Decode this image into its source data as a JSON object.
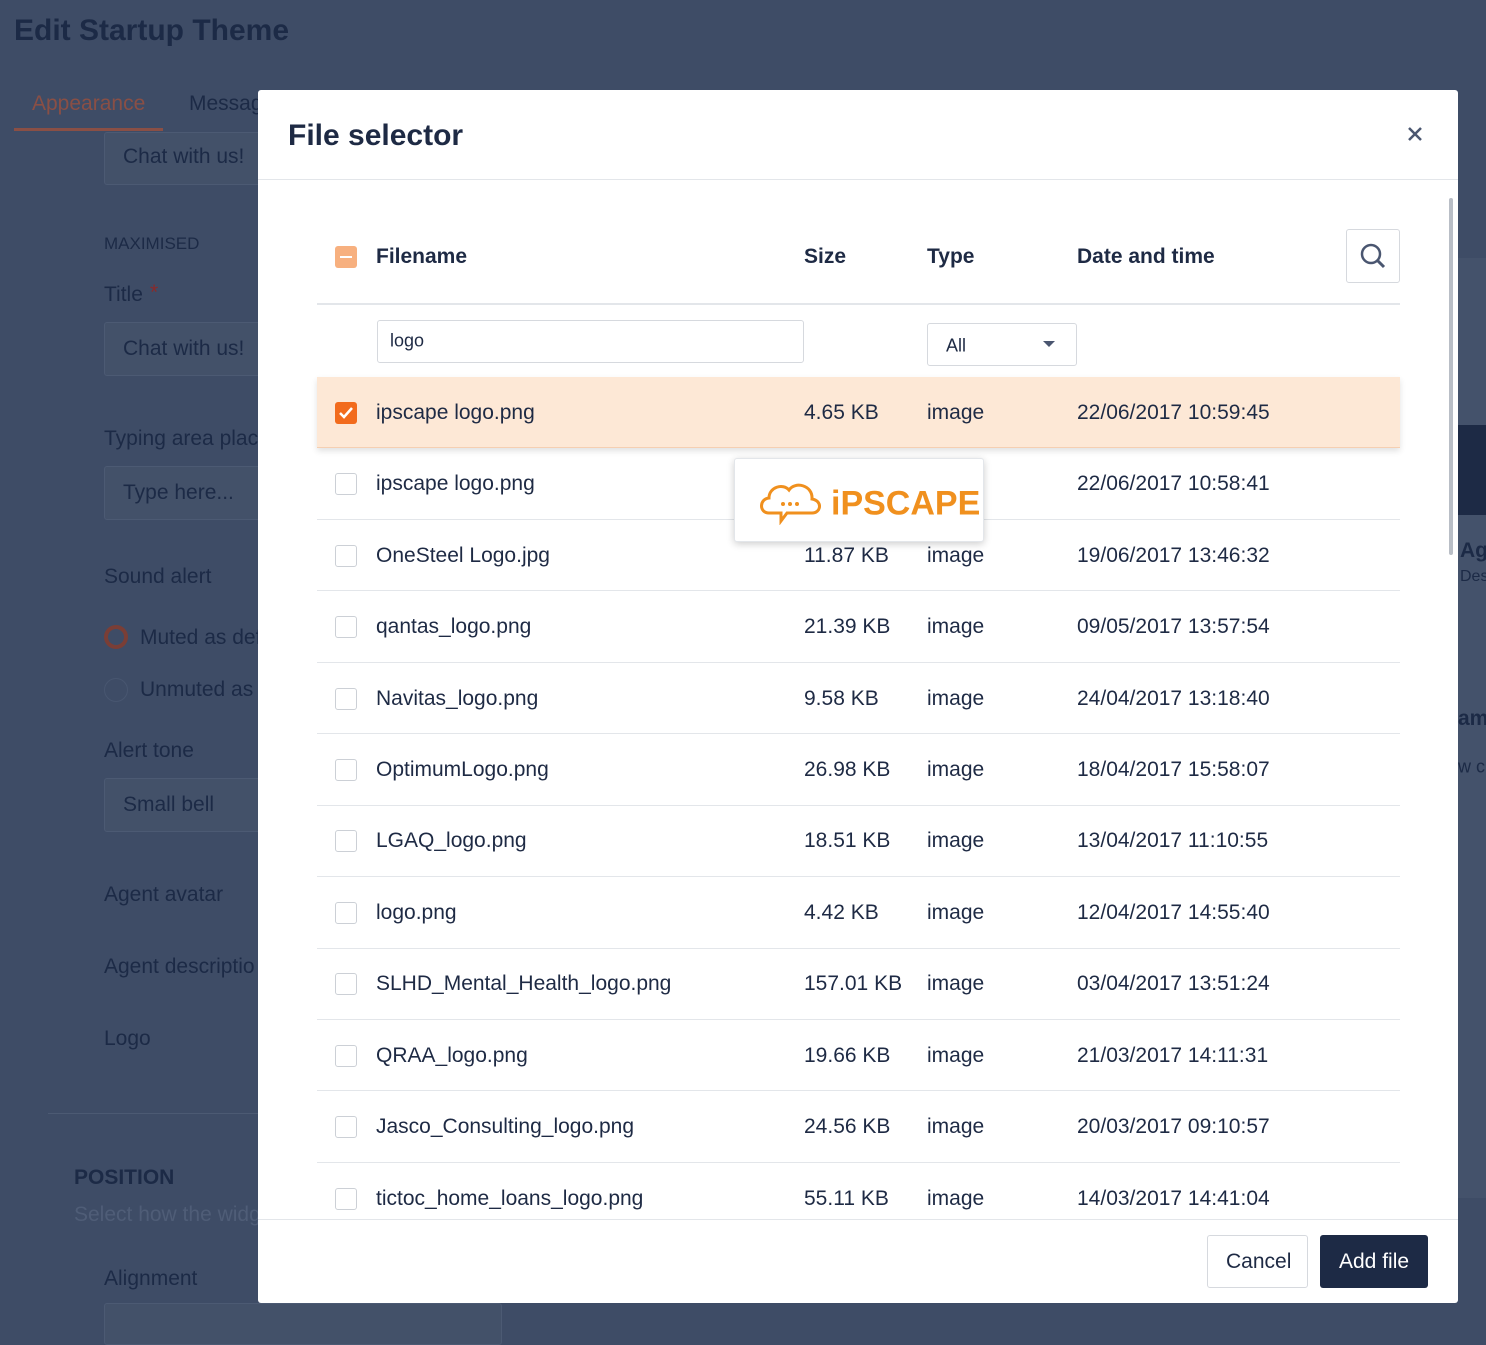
{
  "page": {
    "title": "Edit Startup Theme",
    "tabs": [
      "Appearance",
      "Messag"
    ],
    "form": {
      "chat_field": "Chat with us!",
      "maximised": "MAXIMISED",
      "title_label": "Title",
      "required_mark": "*",
      "title_value": "Chat with us!",
      "typing_label": "Typing area place",
      "typing_value": "Type here...",
      "sound_label": "Sound alert",
      "sound_options": [
        "Muted as def",
        "Unmuted as c"
      ],
      "tone_label": "Alert tone",
      "tone_value": "Small bell",
      "avatar_label": "Agent avatar",
      "description_label": "Agent descriptio",
      "logo_label": "Logo",
      "position_heading": "POSITION",
      "position_hint": "Select how the widg",
      "alignment_label": "Alignment"
    },
    "side": [
      "Ag",
      "Des",
      "am",
      "w c"
    ]
  },
  "file_selector": {
    "title": "File selector",
    "columns": [
      "Filename",
      "Size",
      "Type",
      "Date and time"
    ],
    "filter_text": "logo",
    "type_filter": "All",
    "preview_logo": "iPSCAPE",
    "rows": [
      {
        "filename": "ipscape logo.png",
        "size": "4.65 KB",
        "type": "image",
        "date": "22/06/2017 10:59:45",
        "checked": true
      },
      {
        "filename": "ipscape logo.png",
        "size": null,
        "type": null,
        "date": "22/06/2017 10:58:41",
        "checked": false
      },
      {
        "filename": "OneSteel Logo.jpg",
        "size": "11.87 KB",
        "type": "image",
        "date": "19/06/2017 13:46:32",
        "checked": false
      },
      {
        "filename": "qantas_logo.png",
        "size": "21.39 KB",
        "type": "image",
        "date": "09/05/2017 13:57:54",
        "checked": false
      },
      {
        "filename": "Navitas_logo.png",
        "size": "9.58 KB",
        "type": "image",
        "date": "24/04/2017 13:18:40",
        "checked": false
      },
      {
        "filename": "OptimumLogo.png",
        "size": "26.98 KB",
        "type": "image",
        "date": "18/04/2017 15:58:07",
        "checked": false
      },
      {
        "filename": "LGAQ_logo.png",
        "size": "18.51 KB",
        "type": "image",
        "date": "13/04/2017 11:10:55",
        "checked": false
      },
      {
        "filename": "logo.png",
        "size": "4.42 KB",
        "type": "image",
        "date": "12/04/2017 14:55:40",
        "checked": false
      },
      {
        "filename": "SLHD_Mental_Health_logo.png",
        "size": "157.01 KB",
        "type": "image",
        "date": "03/04/2017 13:51:24",
        "checked": false
      },
      {
        "filename": "QRAA_logo.png",
        "size": "19.66 KB",
        "type": "image",
        "date": "21/03/2017 14:11:31",
        "checked": false
      },
      {
        "filename": "Jasco_Consulting_logo.png",
        "size": "24.56 KB",
        "type": "image",
        "date": "20/03/2017 09:10:57",
        "checked": false
      },
      {
        "filename": "tictoc_home_loans_logo.png",
        "size": "55.11 KB",
        "type": "image",
        "date": "14/03/2017 14:41:04",
        "checked": false
      }
    ],
    "buttons": {
      "cancel": "Cancel",
      "add": "Add file"
    }
  }
}
